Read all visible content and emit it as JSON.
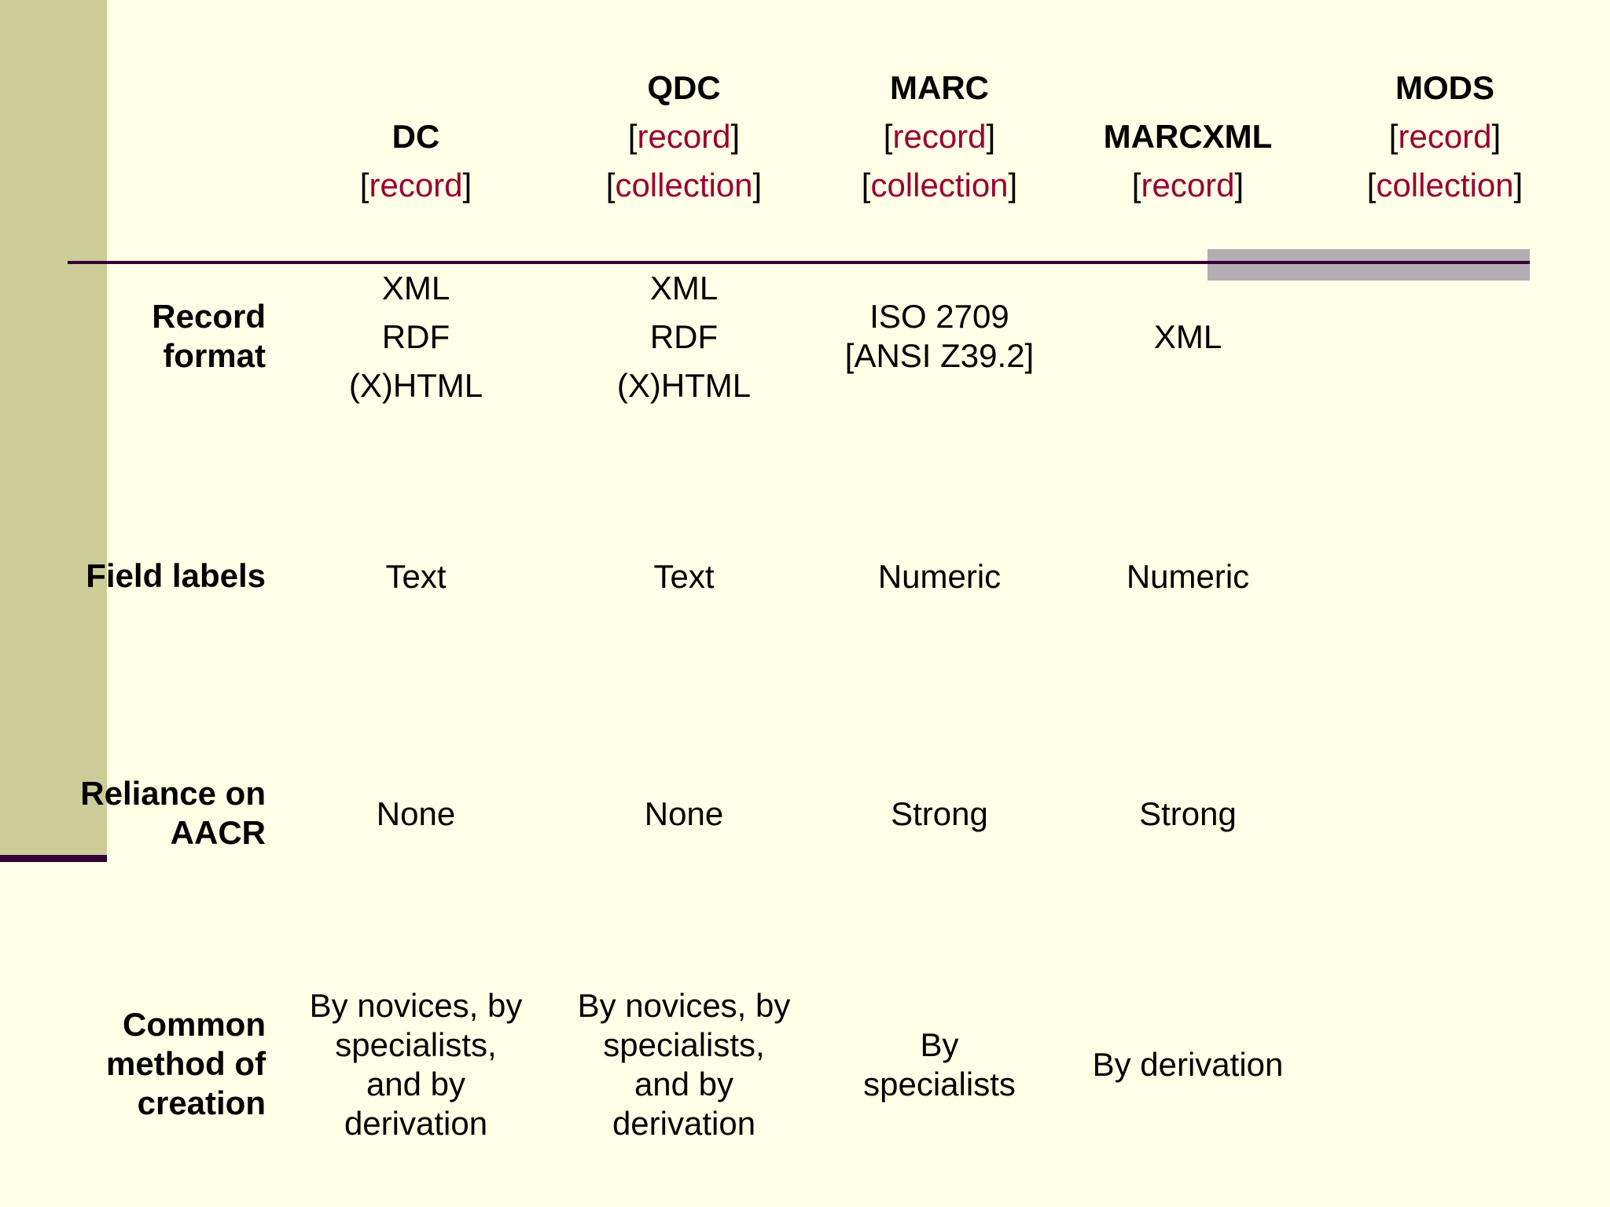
{
  "columns": [
    {
      "name": "DC",
      "tags": [
        "record"
      ]
    },
    {
      "name": "QDC",
      "tags": [
        "record",
        "collection"
      ]
    },
    {
      "name": "MARC",
      "tags": [
        "record",
        "collection"
      ]
    },
    {
      "name": "MARCXML",
      "tags": [
        "record"
      ]
    },
    {
      "name": "MODS",
      "tags": [
        "record",
        "collection"
      ]
    }
  ],
  "rows": [
    {
      "label": [
        "Record",
        "format"
      ],
      "cells": [
        [
          "XML",
          "RDF",
          "(X)HTML"
        ],
        [
          "XML",
          "RDF",
          "(X)HTML"
        ],
        [
          "ISO 2709",
          "[ANSI Z39.2]"
        ],
        [
          "XML"
        ],
        []
      ]
    },
    {
      "label": [
        "Field labels"
      ],
      "cells": [
        [
          "Text"
        ],
        [
          "Text"
        ],
        [
          "Numeric"
        ],
        [
          "Numeric"
        ],
        []
      ]
    },
    {
      "label": [
        "Reliance on",
        "AACR"
      ],
      "cells": [
        [
          "None"
        ],
        [
          "None"
        ],
        [
          "Strong"
        ],
        [
          "Strong"
        ],
        []
      ]
    },
    {
      "label": [
        "Common",
        "method of",
        "creation"
      ],
      "cells": [
        [
          "By novices, by",
          "specialists,",
          "and by",
          "derivation"
        ],
        [
          "By novices, by",
          "specialists,",
          "and by",
          "derivation"
        ],
        [
          "By",
          "specialists"
        ],
        [
          "By derivation"
        ],
        []
      ]
    }
  ],
  "colors": {
    "background": "#FFFEE6",
    "left_bar": "#CCCC99",
    "rule": "#330033",
    "rule_shadow": "#B3ADB3",
    "tag_text": "#990033"
  }
}
